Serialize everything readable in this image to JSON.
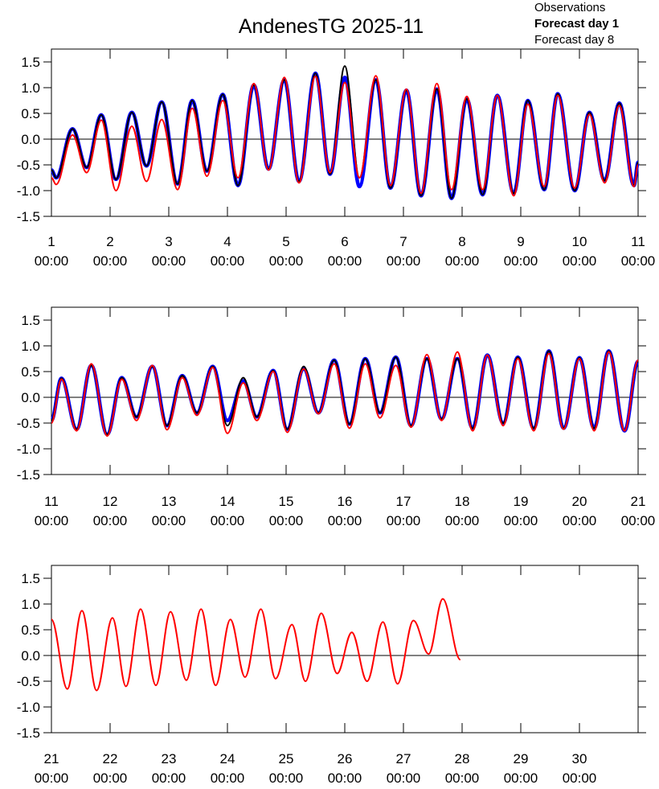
{
  "chart_data": [
    {
      "type": "line",
      "title": "AndenesTG 2025-11",
      "legend": "upper right",
      "x": [
        1.0,
        1.08,
        1.36,
        1.6,
        1.85,
        2.1,
        2.37,
        2.62,
        2.88,
        3.15,
        3.4,
        3.65,
        3.92,
        4.18,
        4.45,
        4.7,
        4.97,
        5.22,
        5.5,
        5.75,
        6.0,
        6.25,
        6.53,
        6.78,
        7.05,
        7.3,
        7.57,
        7.82,
        8.08,
        8.35,
        8.6,
        8.88,
        9.12,
        9.4,
        9.63,
        9.92,
        10.17,
        10.43,
        10.68,
        10.93,
        11.0
      ],
      "series": [
        {
          "name": "Observations",
          "color": "#000000",
          "values": [
            -0.6,
            -0.75,
            0.2,
            -0.55,
            0.47,
            -0.78,
            0.52,
            -0.52,
            0.72,
            -0.87,
            0.75,
            -0.62,
            0.87,
            -0.9,
            1.05,
            -0.58,
            1.15,
            -0.82,
            1.28,
            -0.68,
            1.42,
            -0.75,
            1.15,
            -0.95,
            0.95,
            -1.1,
            0.97,
            -1.15,
            0.78,
            -1.08,
            0.85,
            -1.05,
            0.75,
            -0.98,
            0.88,
            -1.0,
            0.52,
            -0.8,
            0.7,
            -0.9,
            -0.45
          ]
        },
        {
          "name": "Forecast day 1",
          "color": "#0000ff",
          "values": [
            -0.6,
            -0.75,
            0.2,
            -0.55,
            0.47,
            -0.78,
            0.52,
            -0.52,
            0.72,
            -0.87,
            0.75,
            -0.62,
            0.87,
            -0.9,
            1.05,
            -0.58,
            1.15,
            -0.82,
            1.28,
            -0.68,
            1.2,
            -0.92,
            1.15,
            -0.95,
            0.95,
            -1.1,
            0.97,
            -1.15,
            0.78,
            -1.08,
            0.85,
            -1.05,
            0.75,
            -0.98,
            0.88,
            -1.0,
            0.52,
            -0.8,
            0.7,
            -0.9,
            -0.45
          ]
        },
        {
          "name": "Forecast day 8",
          "color": "#ff0000",
          "values": [
            -0.75,
            -0.88,
            0.08,
            -0.65,
            0.37,
            -1.0,
            0.25,
            -0.82,
            0.38,
            -0.98,
            0.6,
            -0.72,
            0.75,
            -0.75,
            1.08,
            -0.6,
            1.2,
            -0.85,
            1.22,
            -0.65,
            1.1,
            -0.75,
            1.23,
            -0.9,
            0.97,
            -1.05,
            1.08,
            -0.98,
            0.83,
            -0.98,
            0.85,
            -1.1,
            0.68,
            -0.92,
            0.85,
            -0.95,
            0.48,
            -0.85,
            0.65,
            -0.92,
            -0.5
          ]
        }
      ],
      "xlim": [
        1,
        11
      ],
      "xticks": [
        {
          "value": 1,
          "label": "1\n00:00"
        },
        {
          "value": 2,
          "label": "2\n00:00"
        },
        {
          "value": 3,
          "label": "3\n00:00"
        },
        {
          "value": 4,
          "label": "4\n00:00"
        },
        {
          "value": 5,
          "label": "5\n00:00"
        },
        {
          "value": 6,
          "label": "6\n00:00"
        },
        {
          "value": 7,
          "label": "7\n00:00"
        },
        {
          "value": 8,
          "label": "8\n00:00"
        },
        {
          "value": 9,
          "label": "9\n00:00"
        },
        {
          "value": 10,
          "label": "10\n00:00"
        },
        {
          "value": 11,
          "label": "11\n00:00"
        }
      ],
      "ylim": [
        -1.5,
        1.75
      ],
      "yticks": [
        -1.5,
        {
          "value": -1,
          "label": "-1.0"
        },
        -0.5,
        {
          "value": 0,
          "label": "0.0"
        },
        0.5,
        {
          "value": 1,
          "label": "1.0"
        },
        1.5
      ]
    },
    {
      "type": "line",
      "x": [
        11.0,
        11.17,
        11.43,
        11.68,
        11.95,
        12.2,
        12.45,
        12.72,
        12.97,
        13.23,
        13.48,
        13.75,
        14.0,
        14.27,
        14.5,
        14.78,
        15.02,
        15.3,
        15.55,
        15.82,
        16.08,
        16.35,
        16.6,
        16.87,
        17.13,
        17.4,
        17.65,
        17.92,
        18.18,
        18.43,
        18.7,
        18.95,
        19.22,
        19.48,
        19.73,
        20.0,
        20.25,
        20.5,
        20.77,
        21.0
      ],
      "series": [
        {
          "color": "#000000",
          "values": [
            -0.45,
            0.37,
            -0.62,
            0.62,
            -0.72,
            0.38,
            -0.38,
            0.6,
            -0.55,
            0.42,
            -0.3,
            0.6,
            -0.55,
            0.38,
            -0.38,
            0.52,
            -0.62,
            0.6,
            -0.3,
            0.72,
            -0.52,
            0.75,
            -0.3,
            0.78,
            -0.55,
            0.75,
            -0.42,
            0.75,
            -0.6,
            0.82,
            -0.5,
            0.78,
            -0.6,
            0.9,
            -0.6,
            0.77,
            -0.6,
            0.9,
            -0.65,
            0.7
          ]
        },
        {
          "color": "#0000ff",
          "values": [
            -0.45,
            0.37,
            -0.62,
            0.62,
            -0.72,
            0.38,
            -0.38,
            0.6,
            -0.55,
            0.42,
            -0.3,
            0.6,
            -0.45,
            0.32,
            -0.38,
            0.52,
            -0.62,
            0.55,
            -0.3,
            0.72,
            -0.52,
            0.75,
            -0.3,
            0.78,
            -0.55,
            0.75,
            -0.42,
            0.75,
            -0.6,
            0.82,
            -0.5,
            0.78,
            -0.6,
            0.9,
            -0.6,
            0.77,
            -0.6,
            0.9,
            -0.65,
            0.7
          ]
        },
        {
          "color": "#ff0000",
          "values": [
            -0.5,
            0.35,
            -0.65,
            0.65,
            -0.75,
            0.35,
            -0.45,
            0.62,
            -0.63,
            0.38,
            -0.35,
            0.58,
            -0.7,
            0.28,
            -0.45,
            0.5,
            -0.68,
            0.55,
            -0.32,
            0.65,
            -0.6,
            0.65,
            -0.4,
            0.62,
            -0.58,
            0.83,
            -0.45,
            0.88,
            -0.65,
            0.82,
            -0.55,
            0.75,
            -0.65,
            0.85,
            -0.62,
            0.75,
            -0.65,
            0.88,
            -0.65,
            0.72
          ]
        }
      ],
      "xlim": [
        11,
        21
      ],
      "xticks": [
        {
          "value": 11,
          "label": "11\n00:00"
        },
        {
          "value": 12,
          "label": "12\n00:00"
        },
        {
          "value": 13,
          "label": "13\n00:00"
        },
        {
          "value": 14,
          "label": "14\n00:00"
        },
        {
          "value": 15,
          "label": "15\n00:00"
        },
        {
          "value": 16,
          "label": "16\n00:00"
        },
        {
          "value": 17,
          "label": "17\n00:00"
        },
        {
          "value": 18,
          "label": "18\n00:00"
        },
        {
          "value": 19,
          "label": "19\n00:00"
        },
        {
          "value": 20,
          "label": "20\n00:00"
        },
        {
          "value": 21,
          "label": "21\n00:00"
        }
      ],
      "ylim": [
        -1.5,
        1.75
      ],
      "yticks": [
        -1.5,
        {
          "value": -1,
          "label": "-1.0"
        },
        -0.5,
        {
          "value": 0,
          "label": "0.0"
        },
        0.5,
        {
          "value": 1,
          "label": "1.0"
        },
        1.5
      ]
    },
    {
      "type": "line",
      "x": [
        21.0,
        21.27,
        21.52,
        21.77,
        22.04,
        22.27,
        22.52,
        22.78,
        23.03,
        23.3,
        23.55,
        23.8,
        24.05,
        24.3,
        24.57,
        24.82,
        25.1,
        25.33,
        25.6,
        25.87,
        26.12,
        26.38,
        26.65,
        26.9,
        27.17,
        27.43,
        27.67,
        27.97
      ],
      "series": [
        {
          "color": "#ff0000",
          "values": [
            0.7,
            -0.65,
            0.87,
            -0.68,
            0.73,
            -0.6,
            0.9,
            -0.58,
            0.85,
            -0.48,
            0.9,
            -0.58,
            0.7,
            -0.42,
            0.9,
            -0.45,
            0.6,
            -0.5,
            0.82,
            -0.35,
            0.45,
            -0.5,
            0.65,
            -0.55,
            0.68,
            0.03,
            1.1,
            -0.08
          ]
        }
      ],
      "xlim": [
        21,
        31
      ],
      "xticks": [
        {
          "value": 21,
          "label": "21\n00:00"
        },
        {
          "value": 22,
          "label": "22\n00:00"
        },
        {
          "value": 23,
          "label": "23\n00:00"
        },
        {
          "value": 24,
          "label": "24\n00:00"
        },
        {
          "value": 25,
          "label": "25\n00:00"
        },
        {
          "value": 26,
          "label": "26\n00:00"
        },
        {
          "value": 27,
          "label": "27\n00:00"
        },
        {
          "value": 28,
          "label": "28\n00:00"
        },
        {
          "value": 29,
          "label": "29\n00:00"
        },
        {
          "value": 30,
          "label": "30\n00:00"
        }
      ],
      "ylim": [
        -1.5,
        1.75
      ],
      "yticks": [
        -1.5,
        {
          "value": -1,
          "label": "-1.0"
        },
        -0.5,
        {
          "value": 0,
          "label": "0.0"
        },
        0.5,
        {
          "value": 1,
          "label": "1.0"
        },
        1.5
      ]
    }
  ]
}
